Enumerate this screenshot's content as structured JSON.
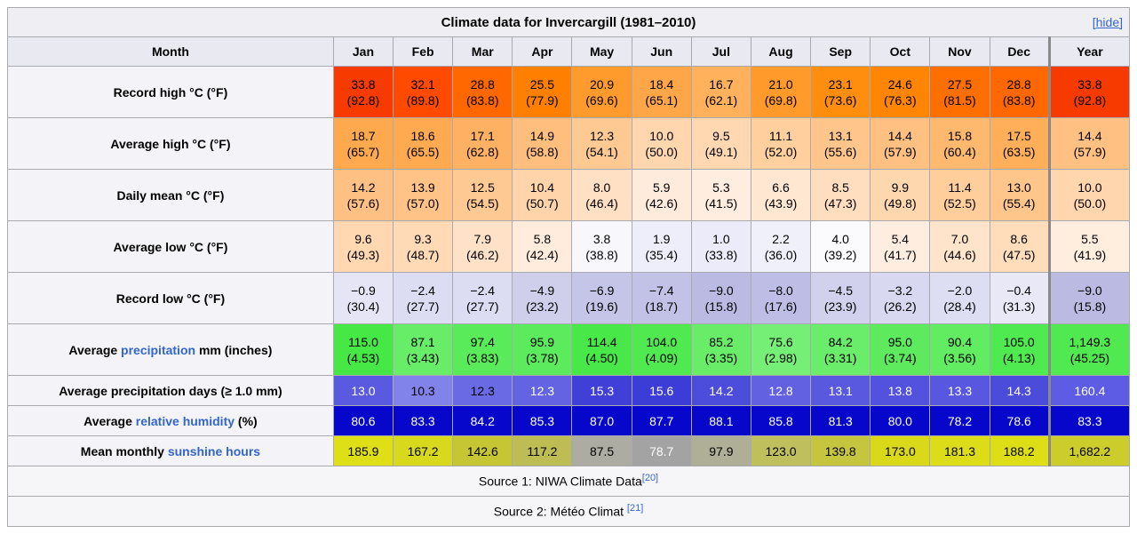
{
  "title": "Climate data for Invercargill (1981–2010)",
  "hide_label": "[hide]",
  "columns": [
    "Month",
    "Jan",
    "Feb",
    "Mar",
    "Apr",
    "May",
    "Jun",
    "Jul",
    "Aug",
    "Sep",
    "Oct",
    "Nov",
    "Dec",
    "Year"
  ],
  "colors": {
    "link": "#3366CC",
    "border": "#A9A9B0",
    "year_separator": "#8A8A8A",
    "title_bg": "#EFEFF3",
    "month_header_bg": "#E9E9F1",
    "row_label_bg": "#F3F3F8",
    "source_bg": "#F6F6F8",
    "humidity_bg": "#0707CC"
  },
  "rows": [
    {
      "key": "record-high",
      "two": true,
      "label": [
        {
          "t": "Record high °C (°F)",
          "link": false
        }
      ],
      "cells": [
        {
          "v": "33.8",
          "f": "(92.8)",
          "bg": "#F63A00"
        },
        {
          "v": "32.1",
          "f": "(89.8)",
          "bg": "#FF4A00"
        },
        {
          "v": "28.8",
          "f": "(83.8)",
          "bg": "#FF6700"
        },
        {
          "v": "25.5",
          "f": "(77.9)",
          "bg": "#FF8000"
        },
        {
          "v": "20.9",
          "f": "(69.6)",
          "bg": "#FF9B2D"
        },
        {
          "v": "18.4",
          "f": "(65.1)",
          "bg": "#FFA748"
        },
        {
          "v": "16.7",
          "f": "(62.1)",
          "bg": "#FFB15C"
        },
        {
          "v": "21.0",
          "f": "(69.8)",
          "bg": "#FF9A2B"
        },
        {
          "v": "23.1",
          "f": "(73.6)",
          "bg": "#FF8D0E"
        },
        {
          "v": "24.6",
          "f": "(76.3)",
          "bg": "#FF8503"
        },
        {
          "v": "27.5",
          "f": "(81.5)",
          "bg": "#FF6F00"
        },
        {
          "v": "28.8",
          "f": "(83.8)",
          "bg": "#FF6700"
        },
        {
          "v": "33.8",
          "f": "(92.8)",
          "bg": "#F63A00"
        }
      ]
    },
    {
      "key": "average-high",
      "two": true,
      "label": [
        {
          "t": "Average high °C (°F)",
          "link": false
        }
      ],
      "cells": [
        {
          "v": "18.7",
          "f": "(65.7)",
          "bg": "#FFA94E"
        },
        {
          "v": "18.6",
          "f": "(65.5)",
          "bg": "#FFAA50"
        },
        {
          "v": "17.1",
          "f": "(62.8)",
          "bg": "#FFB163"
        },
        {
          "v": "14.9",
          "f": "(58.8)",
          "bg": "#FFBE7D"
        },
        {
          "v": "12.3",
          "f": "(54.1)",
          "bg": "#FFC994"
        },
        {
          "v": "10.0",
          "f": "(50.0)",
          "bg": "#FFD6AE"
        },
        {
          "v": "9.5",
          "f": "(49.1)",
          "bg": "#FFD8B2"
        },
        {
          "v": "11.1",
          "f": "(52.0)",
          "bg": "#FFCF9E"
        },
        {
          "v": "13.1",
          "f": "(55.6)",
          "bg": "#FFC58B"
        },
        {
          "v": "14.4",
          "f": "(57.9)",
          "bg": "#FFC081"
        },
        {
          "v": "15.8",
          "f": "(60.4)",
          "bg": "#FFB96F"
        },
        {
          "v": "17.5",
          "f": "(63.5)",
          "bg": "#FFAF5A"
        },
        {
          "v": "14.4",
          "f": "(57.9)",
          "bg": "#FFC081"
        }
      ]
    },
    {
      "key": "daily-mean",
      "two": true,
      "label": [
        {
          "t": "Daily mean °C (°F)",
          "link": false
        }
      ],
      "cells": [
        {
          "v": "14.2",
          "f": "(57.6)",
          "bg": "#FFC183"
        },
        {
          "v": "13.9",
          "f": "(57.0)",
          "bg": "#FFC287"
        },
        {
          "v": "12.5",
          "f": "(54.5)",
          "bg": "#FFC993"
        },
        {
          "v": "10.4",
          "f": "(50.7)",
          "bg": "#FFD4AA"
        },
        {
          "v": "8.0",
          "f": "(46.4)",
          "bg": "#FFE0C5"
        },
        {
          "v": "5.9",
          "f": "(42.6)",
          "bg": "#FFEBDB"
        },
        {
          "v": "5.3",
          "f": "(41.5)",
          "bg": "#FFEEDF"
        },
        {
          "v": "6.6",
          "f": "(43.9)",
          "bg": "#FFE7D2"
        },
        {
          "v": "8.5",
          "f": "(47.3)",
          "bg": "#FFDEC0"
        },
        {
          "v": "9.9",
          "f": "(49.8)",
          "bg": "#FFD7AF"
        },
        {
          "v": "11.4",
          "f": "(52.5)",
          "bg": "#FFCE9B"
        },
        {
          "v": "13.0",
          "f": "(55.4)",
          "bg": "#FFC68C"
        },
        {
          "v": "10.0",
          "f": "(50.0)",
          "bg": "#FFD6AE"
        }
      ]
    },
    {
      "key": "average-low",
      "two": true,
      "label": [
        {
          "t": "Average low °C (°F)",
          "link": false
        }
      ],
      "cells": [
        {
          "v": "9.6",
          "f": "(49.3)",
          "bg": "#FFD8B1"
        },
        {
          "v": "9.3",
          "f": "(48.7)",
          "bg": "#FFDAB5"
        },
        {
          "v": "7.9",
          "f": "(46.2)",
          "bg": "#FFE1C7"
        },
        {
          "v": "5.8",
          "f": "(42.4)",
          "bg": "#FFECDC"
        },
        {
          "v": "3.8",
          "f": "(38.8)",
          "bg": "#F7F7FC"
        },
        {
          "v": "1.9",
          "f": "(35.4)",
          "bg": "#EEEEFA"
        },
        {
          "v": "1.0",
          "f": "(33.8)",
          "bg": "#EBEBF9"
        },
        {
          "v": "2.2",
          "f": "(36.0)",
          "bg": "#F0F0FA"
        },
        {
          "v": "4.0",
          "f": "(39.2)",
          "bg": "#FBFBFE"
        },
        {
          "v": "5.4",
          "f": "(41.7)",
          "bg": "#FFEEDF"
        },
        {
          "v": "7.0",
          "f": "(44.6)",
          "bg": "#FFE4CC"
        },
        {
          "v": "8.6",
          "f": "(47.5)",
          "bg": "#FFDCBA"
        },
        {
          "v": "5.5",
          "f": "(41.9)",
          "bg": "#FFEDDE"
        }
      ]
    },
    {
      "key": "record-low",
      "two": true,
      "label": [
        {
          "t": "Record low °C (°F)",
          "link": false
        }
      ],
      "cells": [
        {
          "v": "−0.9",
          "f": "(30.4)",
          "bg": "#E5E5F6"
        },
        {
          "v": "−2.4",
          "f": "(27.7)",
          "bg": "#DCDCF2"
        },
        {
          "v": "−2.4",
          "f": "(27.7)",
          "bg": "#DCDCF2"
        },
        {
          "v": "−4.9",
          "f": "(23.2)",
          "bg": "#CFCFEC"
        },
        {
          "v": "−6.9",
          "f": "(19.6)",
          "bg": "#C5C5E8"
        },
        {
          "v": "−7.4",
          "f": "(18.7)",
          "bg": "#C2C2E7"
        },
        {
          "v": "−9.0",
          "f": "(15.8)",
          "bg": "#BABAE3"
        },
        {
          "v": "−8.0",
          "f": "(17.6)",
          "bg": "#BDBDE5"
        },
        {
          "v": "−4.5",
          "f": "(23.9)",
          "bg": "#D1D1ED"
        },
        {
          "v": "−3.2",
          "f": "(26.2)",
          "bg": "#D8D8F0"
        },
        {
          "v": "−2.0",
          "f": "(28.4)",
          "bg": "#DEDEF3"
        },
        {
          "v": "−0.4",
          "f": "(31.3)",
          "bg": "#E8E8F7"
        },
        {
          "v": "−9.0",
          "f": "(15.8)",
          "bg": "#BABAE3"
        }
      ]
    },
    {
      "key": "precipitation",
      "two": true,
      "label": [
        {
          "t": "Average ",
          "link": false
        },
        {
          "t": "precipitation",
          "link": true
        },
        {
          "t": " mm (inches)",
          "link": false
        }
      ],
      "cells": [
        {
          "v": "115.0",
          "f": "(4.53)",
          "bg": "#46E846"
        },
        {
          "v": "87.1",
          "f": "(3.43)",
          "bg": "#67ED67"
        },
        {
          "v": "97.4",
          "f": "(3.83)",
          "bg": "#5AEB5A"
        },
        {
          "v": "95.9",
          "f": "(3.78)",
          "bg": "#5CEB5C"
        },
        {
          "v": "114.4",
          "f": "(4.50)",
          "bg": "#47E847"
        },
        {
          "v": "104.0",
          "f": "(4.09)",
          "bg": "#50EA50"
        },
        {
          "v": "85.2",
          "f": "(3.35)",
          "bg": "#69ED69"
        },
        {
          "v": "75.6",
          "f": "(2.98)",
          "bg": "#75EF75"
        },
        {
          "v": "84.2",
          "f": "(3.31)",
          "bg": "#6AED6A"
        },
        {
          "v": "95.0",
          "f": "(3.74)",
          "bg": "#5DEB5D"
        },
        {
          "v": "90.4",
          "f": "(3.56)",
          "bg": "#62EC62"
        },
        {
          "v": "105.0",
          "f": "(4.13)",
          "bg": "#4FEA4F"
        },
        {
          "v": "1,149.3",
          "f": "(45.25)",
          "bg": "#50EA50"
        }
      ]
    },
    {
      "key": "precipitation-days",
      "two": false,
      "label": [
        {
          "t": "Average precipitation days (≥ 1.0 mm)",
          "link": false
        }
      ],
      "cells": [
        {
          "v": "13.0",
          "bg": "#5A5AE0",
          "fg": "#FFFFFF"
        },
        {
          "v": "10.3",
          "bg": "#8282EB"
        },
        {
          "v": "12.3",
          "bg": "#6A6AE5"
        },
        {
          "v": "12.3",
          "bg": "#6464E3",
          "fg": "#FFFFFF"
        },
        {
          "v": "15.3",
          "bg": "#4040D8",
          "fg": "#FFFFFF"
        },
        {
          "v": "15.6",
          "bg": "#3C3CD7",
          "fg": "#FFFFFF"
        },
        {
          "v": "14.2",
          "bg": "#4D4DDC",
          "fg": "#FFFFFF"
        },
        {
          "v": "12.8",
          "bg": "#6161E2",
          "fg": "#FFFFFF"
        },
        {
          "v": "13.1",
          "bg": "#5959E0",
          "fg": "#FFFFFF"
        },
        {
          "v": "13.8",
          "bg": "#5252DE",
          "fg": "#FFFFFF"
        },
        {
          "v": "13.3",
          "bg": "#5757DF",
          "fg": "#FFFFFF"
        },
        {
          "v": "14.3",
          "bg": "#4C4CDB",
          "fg": "#FFFFFF"
        },
        {
          "v": "160.4",
          "bg": "#5C5CE4",
          "fg": "#FFFFFF"
        }
      ]
    },
    {
      "key": "relative-humidity",
      "two": false,
      "label": [
        {
          "t": "Average ",
          "link": false
        },
        {
          "t": "relative humidity",
          "link": true
        },
        {
          "t": " (%)",
          "link": false
        }
      ],
      "cells": [
        {
          "v": "80.6",
          "bg": "#0707CC",
          "fg": "#FFFFFF"
        },
        {
          "v": "83.3",
          "bg": "#0707CC",
          "fg": "#FFFFFF"
        },
        {
          "v": "84.2",
          "bg": "#0707CC",
          "fg": "#FFFFFF"
        },
        {
          "v": "85.3",
          "bg": "#0707CC",
          "fg": "#FFFFFF"
        },
        {
          "v": "87.0",
          "bg": "#0707CC",
          "fg": "#FFFFFF"
        },
        {
          "v": "87.7",
          "bg": "#0707CC",
          "fg": "#FFFFFF"
        },
        {
          "v": "88.1",
          "bg": "#0707CC",
          "fg": "#FFFFFF"
        },
        {
          "v": "85.8",
          "bg": "#0707CC",
          "fg": "#FFFFFF"
        },
        {
          "v": "81.3",
          "bg": "#0707CC",
          "fg": "#FFFFFF"
        },
        {
          "v": "80.0",
          "bg": "#0707CC",
          "fg": "#FFFFFF"
        },
        {
          "v": "78.2",
          "bg": "#0707CC",
          "fg": "#FFFFFF"
        },
        {
          "v": "78.6",
          "bg": "#0707CC",
          "fg": "#FFFFFF"
        },
        {
          "v": "83.3",
          "bg": "#0707CC",
          "fg": "#FFFFFF"
        }
      ]
    },
    {
      "key": "sunshine-hours",
      "two": false,
      "label": [
        {
          "t": "Mean monthly ",
          "link": false
        },
        {
          "t": "sunshine hours",
          "link": true
        }
      ],
      "cells": [
        {
          "v": "185.9",
          "bg": "#DFDF17"
        },
        {
          "v": "167.2",
          "bg": "#D8D81C"
        },
        {
          "v": "142.6",
          "bg": "#C6C634"
        },
        {
          "v": "117.2",
          "bg": "#BDBD53"
        },
        {
          "v": "87.5",
          "bg": "#ACACA3"
        },
        {
          "v": "78.7",
          "bg": "#A3A3A3",
          "fg": "#FFFFFF"
        },
        {
          "v": "97.9",
          "bg": "#AFAF98"
        },
        {
          "v": "123.0",
          "bg": "#BFBF5E"
        },
        {
          "v": "139.8",
          "bg": "#C6C63E"
        },
        {
          "v": "173.0",
          "bg": "#D9D91A"
        },
        {
          "v": "181.3",
          "bg": "#DCDC18"
        },
        {
          "v": "188.2",
          "bg": "#DEDE16"
        },
        {
          "v": "1,682.2",
          "bg": "#CCCC2A"
        }
      ]
    }
  ],
  "sources": [
    {
      "text": "Source 1: NIWA Climate Data",
      "ref": "[20]"
    },
    {
      "text": "Source 2: Météo Climat ",
      "ref": "[21]"
    }
  ]
}
